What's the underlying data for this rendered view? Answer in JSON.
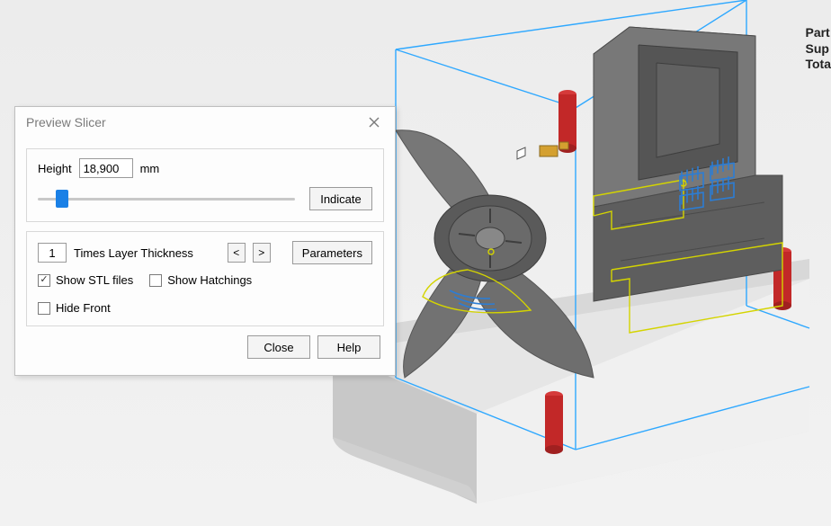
{
  "dialog": {
    "title": "Preview Slicer",
    "height_label": "Height",
    "height_value": "18,900",
    "height_unit": "mm",
    "slider_percent": 7,
    "indicate_label": "Indicate",
    "times_value": "1",
    "times_label": "Times Layer Thickness",
    "prev_label": "<",
    "next_label": ">",
    "parameters_label": "Parameters",
    "checkboxes": {
      "show_stl": {
        "label": "Show STL files",
        "checked": true
      },
      "show_hatch": {
        "label": "Show Hatchings",
        "checked": false
      },
      "hide_front": {
        "label": "Hide Front",
        "checked": false
      }
    },
    "close_label": "Close",
    "help_label": "Help"
  },
  "info": {
    "line1": "Part",
    "line2": "Sup",
    "line3": "Tota"
  },
  "viewport": {
    "background_top": "#ececec",
    "background_bottom": "#f2f2f2",
    "bbox_color": "#2ea8ff",
    "plate_fill": "#e4e4e4",
    "plate_edge": "#bcbcbc",
    "part_fill": "#6b6b6b",
    "part_edge": "#4a4a4a",
    "pin_color": "#c22828",
    "outline_color": "#e6e600",
    "slice_hatch_color": "#2c7dd4"
  }
}
